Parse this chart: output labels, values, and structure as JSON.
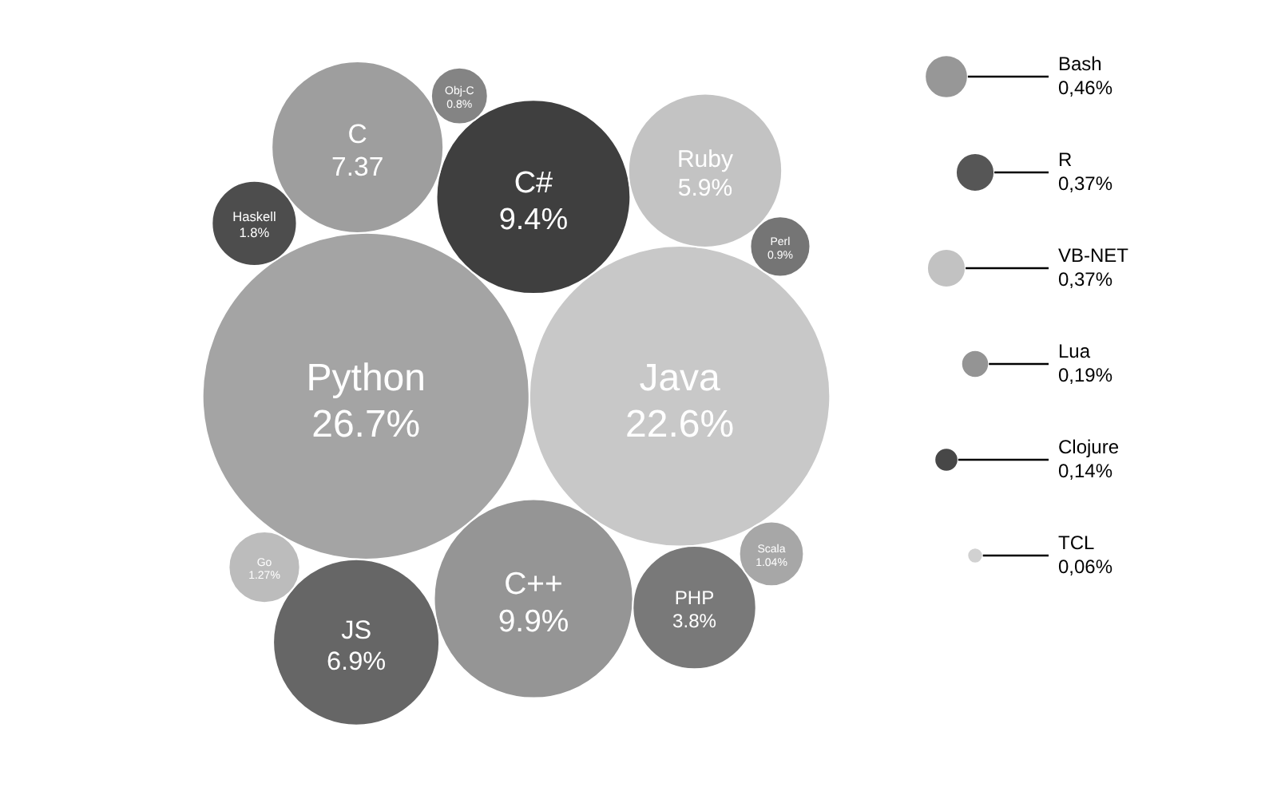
{
  "chart_data": {
    "type": "other",
    "categories": [
      "Python",
      "Java",
      "C++",
      "C#",
      "C",
      "JS",
      "Ruby",
      "PHP",
      "Haskell",
      "Go",
      "Scala",
      "Perl",
      "Obj-C",
      "Bash",
      "R",
      "VB-NET",
      "Lua",
      "Clojure",
      "TCL"
    ],
    "values": [
      26.7,
      22.6,
      9.9,
      9.4,
      7.37,
      6.9,
      5.9,
      3.8,
      1.8,
      1.27,
      1.04,
      0.9,
      0.8,
      0.46,
      0.37,
      0.37,
      0.19,
      0.14,
      0.06
    ],
    "value_labels": [
      "26.7%",
      "22.6%",
      "9.9%",
      "9.4%",
      "7.37",
      "6.9%",
      "5.9%",
      "3.8%",
      "1.8%",
      "1.27%",
      "1.04%",
      "0.9%",
      "0.8%",
      "0,46%",
      "0,37%",
      "0,37%",
      "0,19%",
      "0,14%",
      "0,06%"
    ],
    "colors": [
      "#9a9a9a",
      "#c2c2c2",
      "#8a8a8a",
      "#2a2a2a",
      "#939393",
      "#555555",
      "#bdbdbd",
      "#6a6a6a",
      "#3a3a3a",
      "#b5b5b5",
      "#9d9d9d",
      "#666666",
      "#777777",
      "#8c8c8c",
      "#444444",
      "#bbbbbb",
      "#888888",
      "#333333",
      "#cccccc"
    ]
  }
}
